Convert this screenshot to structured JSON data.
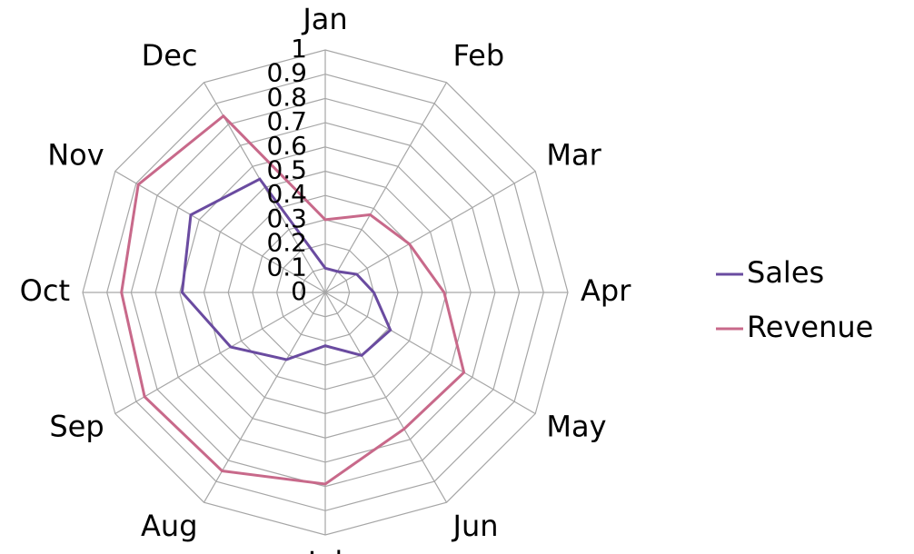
{
  "chart_data": {
    "type": "radar",
    "categories": [
      "Jan",
      "Feb",
      "Mar",
      "Apr",
      "May",
      "Jun",
      "Jul",
      "Aug",
      "Sep",
      "Oct",
      "Nov",
      "Dec"
    ],
    "series": [
      {
        "name": "Sales",
        "color": "#6a4ba0",
        "values": [
          0.1,
          0.1,
          0.15,
          0.2,
          0.31,
          0.3,
          0.22,
          0.32,
          0.45,
          0.59,
          0.64,
          0.54
        ]
      },
      {
        "name": "Revenue",
        "color": "#c8698a",
        "values": [
          0.3,
          0.37,
          0.4,
          0.49,
          0.66,
          0.65,
          0.79,
          0.85,
          0.86,
          0.84,
          0.89,
          0.84
        ]
      }
    ],
    "ylim": [
      0,
      1
    ],
    "yticks": [
      0,
      0.1,
      0.2,
      0.3,
      0.4,
      0.5,
      0.6,
      0.7,
      0.8,
      0.9,
      1
    ],
    "grid": true,
    "legend": "right"
  }
}
